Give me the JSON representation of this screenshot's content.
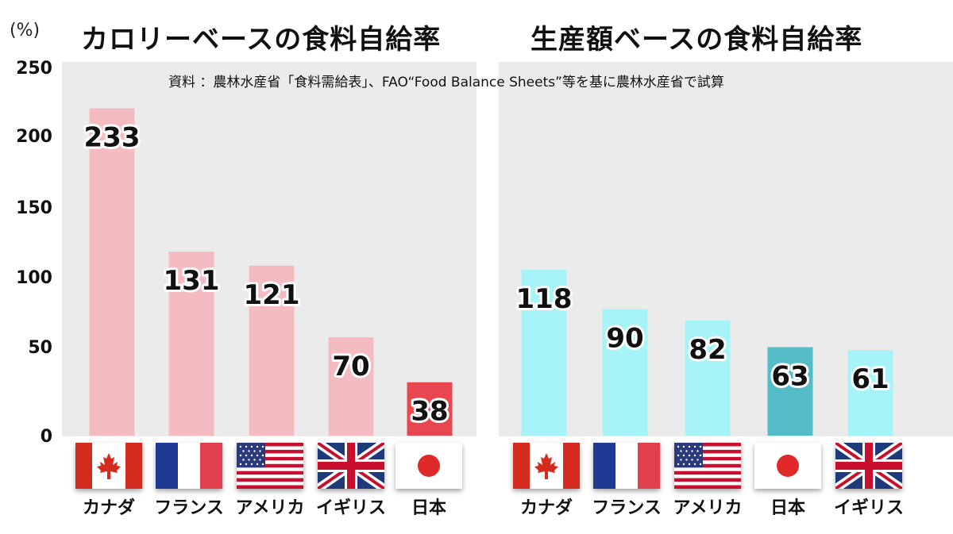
{
  "unit_label": "(%)",
  "source_note": "資料 ：農林水産省「食料需給表」、FAO“Food Balance Sheets”等を基に農林水産省で試算",
  "y_ticks": [
    "250",
    "200",
    "150",
    "100",
    "50",
    "0"
  ],
  "colors": {
    "calorie_bar": "#f4bcc0",
    "calorie_japan": "#e8474f",
    "production_bar": "#a6f3f8",
    "production_japan": "#54bcc6",
    "panel_bg": "#ebebeb"
  },
  "chart_data": [
    {
      "type": "bar",
      "title": "カロリーベースの食料自給率",
      "ylabel": "(%)",
      "ylim": [
        0,
        250
      ],
      "grid": false,
      "categories": [
        "カナダ",
        "フランス",
        "アメリカ",
        "イギリス",
        "日本"
      ],
      "flags": [
        "canada-flag",
        "france-flag",
        "usa-flag",
        "uk-flag",
        "japan-flag"
      ],
      "values": [
        233,
        131,
        121,
        70,
        38
      ],
      "labels": [
        "233",
        "131",
        "121",
        "70",
        "38"
      ],
      "highlight": "日本"
    },
    {
      "type": "bar",
      "title": "生産額ベースの食料自給率",
      "ylabel": "(%)",
      "ylim": [
        0,
        250
      ],
      "grid": false,
      "categories": [
        "カナダ",
        "フランス",
        "アメリカ",
        "日本",
        "イギリス"
      ],
      "flags": [
        "canada-flag",
        "france-flag",
        "usa-flag",
        "japan-flag",
        "uk-flag"
      ],
      "values": [
        118,
        90,
        82,
        63,
        61
      ],
      "labels": [
        "118",
        "90",
        "82",
        "63",
        "61"
      ],
      "highlight": "日本"
    }
  ]
}
